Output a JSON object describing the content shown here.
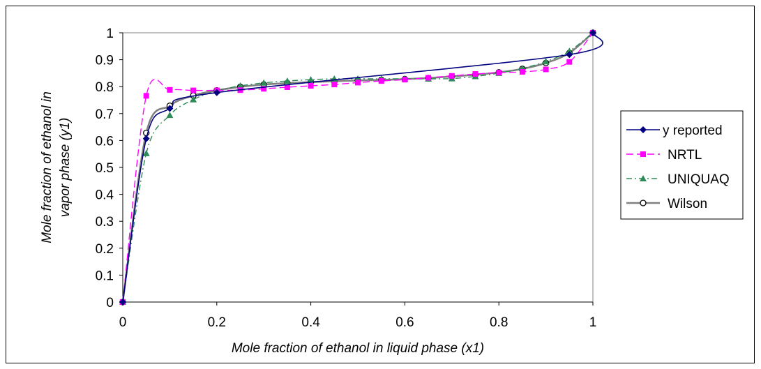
{
  "chart_data": {
    "type": "line",
    "xlabel": "Mole fraction of ethanol in liquid phase (x1)",
    "ylabel_lines": [
      "Mole fraction of ethanol in",
      "vapor phase (y1)"
    ],
    "xlim": [
      0,
      1
    ],
    "ylim": [
      0,
      1
    ],
    "x_ticks": [
      "0",
      "0.2",
      "0.4",
      "0.6",
      "0.8",
      "1"
    ],
    "y_ticks": [
      "0",
      "0.1",
      "0.2",
      "0.3",
      "0.4",
      "0.5",
      "0.6",
      "0.7",
      "0.8",
      "0.9",
      "1"
    ],
    "grid": false,
    "legend_position": "right",
    "series": [
      {
        "name": "y reported",
        "color": "#000080",
        "marker": "diamond",
        "dash": "solid",
        "x": [
          0,
          0.05,
          0.1,
          0.2,
          0.95,
          1
        ],
        "y": [
          0,
          0.607,
          0.719,
          0.778,
          0.919,
          1
        ]
      },
      {
        "name": "NRTL",
        "color": "#FF00FF",
        "marker": "square",
        "dash": "dashed",
        "x": [
          0,
          0.05,
          0.1,
          0.15,
          0.2,
          0.25,
          0.3,
          0.35,
          0.4,
          0.45,
          0.5,
          0.55,
          0.6,
          0.65,
          0.7,
          0.75,
          0.8,
          0.85,
          0.9,
          0.95,
          1
        ],
        "y": [
          0,
          0.766,
          0.788,
          0.786,
          0.786,
          0.787,
          0.792,
          0.798,
          0.803,
          0.808,
          0.815,
          0.821,
          0.826,
          0.833,
          0.84,
          0.847,
          0.852,
          0.855,
          0.864,
          0.892,
          1
        ]
      },
      {
        "name": "UNIQUAQ",
        "color": "#2E8B57",
        "marker": "triangle",
        "dash": "dashdot",
        "x": [
          0,
          0.05,
          0.1,
          0.15,
          0.2,
          0.25,
          0.3,
          0.35,
          0.4,
          0.45,
          0.5,
          0.55,
          0.6,
          0.65,
          0.7,
          0.75,
          0.8,
          0.85,
          0.9,
          0.95,
          1
        ],
        "y": [
          0,
          0.552,
          0.694,
          0.752,
          0.784,
          0.803,
          0.814,
          0.821,
          0.826,
          0.829,
          0.829,
          0.829,
          0.829,
          0.829,
          0.83,
          0.838,
          0.85,
          0.868,
          0.893,
          0.932,
          1
        ]
      },
      {
        "name": "Wilson",
        "color": "#808080",
        "marker": "circle",
        "dash": "solid",
        "x": [
          0,
          0.05,
          0.1,
          0.15,
          0.2,
          0.25,
          0.3,
          0.35,
          0.4,
          0.45,
          0.5,
          0.55,
          0.6,
          0.65,
          0.7,
          0.75,
          0.8,
          0.85,
          0.9,
          0.95,
          1
        ],
        "y": [
          0,
          0.628,
          0.729,
          0.767,
          0.786,
          0.799,
          0.808,
          0.813,
          0.817,
          0.82,
          0.823,
          0.825,
          0.828,
          0.832,
          0.838,
          0.844,
          0.853,
          0.866,
          0.888,
          0.925,
          1
        ]
      }
    ]
  }
}
